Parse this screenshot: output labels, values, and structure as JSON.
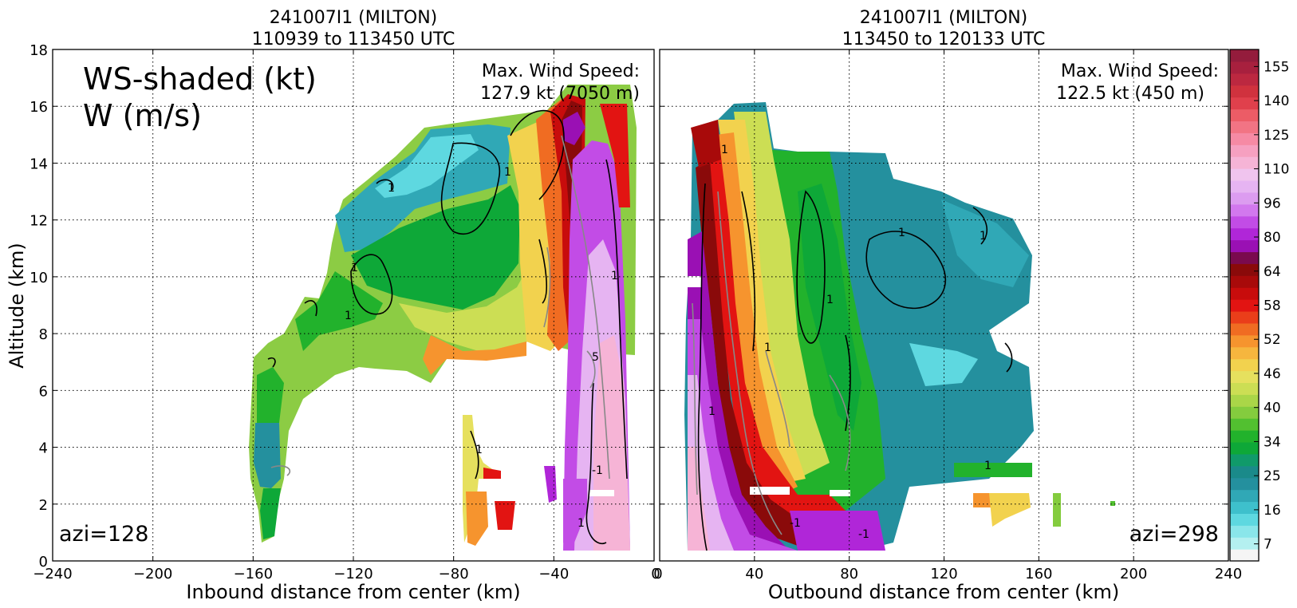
{
  "chart_data": [
    {
      "type": "heatmap",
      "panel": "left",
      "title_line1": "241007I1 (MILTON)",
      "title_line2": "110939 to 113450 UTC",
      "xlabel": "Inbound distance from center (km)",
      "ylabel": "Altitude (km)",
      "xlim": [
        -240,
        0
      ],
      "ylim": [
        0,
        18
      ],
      "xticks": [
        "−240",
        "−200",
        "−160",
        "−120",
        "−80",
        "−40",
        "0"
      ],
      "yticks": [
        "0",
        "2",
        "4",
        "6",
        "8",
        "10",
        "12",
        "14",
        "16",
        "18"
      ],
      "grid": true,
      "shaded_field": "WS-shaded (kt)",
      "contour_field": "W (m/s)",
      "max_label": "Max. Wind Speed:",
      "max_value": "127.9 kt (7050 m)",
      "azimuth": "azi=128",
      "contour_labels": [
        "1",
        "1",
        "1",
        "1",
        "1",
        "1",
        "1",
        "-1",
        "5"
      ]
    },
    {
      "type": "heatmap",
      "panel": "right",
      "title_line1": "241007I1 (MILTON)",
      "title_line2": "113450 to 120133 UTC",
      "xlabel": "Outbound distance from center (km)",
      "xlim": [
        0,
        240
      ],
      "ylim": [
        0,
        18
      ],
      "xticks": [
        "0",
        "40",
        "80",
        "120",
        "160",
        "200",
        "240"
      ],
      "grid": true,
      "max_label": "Max. Wind Speed:",
      "max_value": "122.5 kt (450 m)",
      "azimuth": "azi=298",
      "contour_labels": [
        "1",
        "1",
        "1",
        "1",
        "1",
        "-1",
        "-1",
        "1",
        "1"
      ]
    },
    {
      "type": "colorbar",
      "tick_labels": [
        "7",
        "16",
        "25",
        "34",
        "40",
        "46",
        "52",
        "58",
        "64",
        "80",
        "96",
        "110",
        "125",
        "140",
        "155"
      ],
      "colors": [
        "#f5f5f5",
        "#b4f0f0",
        "#8ae6ea",
        "#5ed8e0",
        "#3ec0cc",
        "#30a8b6",
        "#24909e",
        "#1a8a8a",
        "#109a6a",
        "#0ea838",
        "#22b22c",
        "#52c030",
        "#84cc3e",
        "#aad648",
        "#ccde54",
        "#e6e05e",
        "#f2d24e",
        "#f6b63e",
        "#f6942e",
        "#f06c22",
        "#ea3e1a",
        "#e21412",
        "#c80c0c",
        "#a80a0a",
        "#8a0a0a",
        "#7a0a4e",
        "#9a10b4",
        "#b026d8",
        "#c24ce6",
        "#d278ee",
        "#dc9cf0",
        "#e6b4f2",
        "#f0c4ee",
        "#f6b4d6",
        "#f6a0c0",
        "#f68aa4",
        "#f27484",
        "#ec5c66",
        "#e0404c",
        "#d0323e",
        "#bc2840",
        "#a8203e",
        "#941c3c"
      ],
      "range": [
        7,
        160
      ]
    }
  ]
}
